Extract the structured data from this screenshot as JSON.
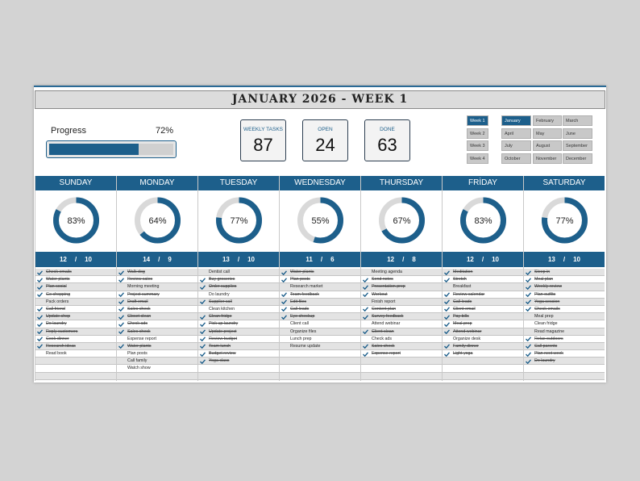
{
  "title": "JANUARY 2026 - WEEK 1",
  "progress": {
    "label": "Progress",
    "value": 72,
    "value_label": "72%"
  },
  "stats": [
    {
      "label": "WEEKLY TASKS",
      "value": 87
    },
    {
      "label": "OPEN",
      "value": 24
    },
    {
      "label": "DONE",
      "value": 63
    }
  ],
  "weeks": [
    {
      "label": "Week 1",
      "selected": true
    },
    {
      "label": "Week 2",
      "selected": false
    },
    {
      "label": "Week 3",
      "selected": false
    },
    {
      "label": "Week 4",
      "selected": false
    }
  ],
  "months": [
    {
      "label": "January",
      "selected": true
    },
    {
      "label": "February",
      "selected": false
    },
    {
      "label": "March",
      "selected": false
    },
    {
      "label": "April",
      "selected": false
    },
    {
      "label": "May",
      "selected": false
    },
    {
      "label": "June",
      "selected": false
    },
    {
      "label": "July",
      "selected": false
    },
    {
      "label": "August",
      "selected": false
    },
    {
      "label": "September",
      "selected": false
    },
    {
      "label": "October",
      "selected": false
    },
    {
      "label": "November",
      "selected": false
    },
    {
      "label": "December",
      "selected": false
    }
  ],
  "count_separator": "/",
  "days": [
    {
      "name": "SUNDAY",
      "percent": 83,
      "percent_label": "83%",
      "total": 12,
      "done": 10,
      "tasks": [
        {
          "text": "Check emails",
          "done": true
        },
        {
          "text": "Water plants",
          "done": true
        },
        {
          "text": "Plan social",
          "done": true
        },
        {
          "text": "Go shopping",
          "done": true
        },
        {
          "text": "Pack orders",
          "done": false
        },
        {
          "text": "Call friend",
          "done": true
        },
        {
          "text": "Update shop",
          "done": true
        },
        {
          "text": "Do laundry",
          "done": true
        },
        {
          "text": "Reply customers",
          "done": true
        },
        {
          "text": "Cook dinner",
          "done": true
        },
        {
          "text": "Research ideas",
          "done": true
        },
        {
          "text": "Read book",
          "done": false
        }
      ]
    },
    {
      "name": "MONDAY",
      "percent": 64,
      "percent_label": "64%",
      "total": 14,
      "done": 9,
      "tasks": [
        {
          "text": "Walk dog",
          "done": true
        },
        {
          "text": "Review sales",
          "done": true
        },
        {
          "text": "Morning meeting",
          "done": false
        },
        {
          "text": "Project summary",
          "done": true
        },
        {
          "text": "Draft email",
          "done": true
        },
        {
          "text": "Sales check",
          "done": true
        },
        {
          "text": "Closet clean",
          "done": true
        },
        {
          "text": "Check ads",
          "done": true
        },
        {
          "text": "Sales check",
          "done": true
        },
        {
          "text": "Expense report",
          "done": false
        },
        {
          "text": "Water plants",
          "done": true
        },
        {
          "text": "Plan posts",
          "done": false
        },
        {
          "text": "Call family",
          "done": false
        },
        {
          "text": "Watch show",
          "done": false
        }
      ]
    },
    {
      "name": "TUESDAY",
      "percent": 77,
      "percent_label": "77%",
      "total": 13,
      "done": 10,
      "tasks": [
        {
          "text": "Dentist call",
          "done": false
        },
        {
          "text": "Buy groceries",
          "done": true
        },
        {
          "text": "Order supplies",
          "done": true
        },
        {
          "text": "Do laundry",
          "done": false
        },
        {
          "text": "Supplier call",
          "done": true
        },
        {
          "text": "Clean kitchen",
          "done": false
        },
        {
          "text": "Clean fridge",
          "done": true
        },
        {
          "text": "Pick up laundry",
          "done": true
        },
        {
          "text": "Update project",
          "done": true
        },
        {
          "text": "Review budget",
          "done": true
        },
        {
          "text": "Team lunch",
          "done": true
        },
        {
          "text": "Budget review",
          "done": true
        },
        {
          "text": "Yoga class",
          "done": true
        }
      ]
    },
    {
      "name": "WEDNESDAY",
      "percent": 55,
      "percent_label": "55%",
      "total": 11,
      "done": 6,
      "tasks": [
        {
          "text": "Water plants",
          "done": true
        },
        {
          "text": "Plan posts",
          "done": true
        },
        {
          "text": "Research market",
          "done": false
        },
        {
          "text": "Team feedback",
          "done": true
        },
        {
          "text": "Edit files",
          "done": true
        },
        {
          "text": "Call leads",
          "done": true
        },
        {
          "text": "Eye checkup",
          "done": true
        },
        {
          "text": "Client call",
          "done": false
        },
        {
          "text": "Organize files",
          "done": false
        },
        {
          "text": "Lunch prep",
          "done": false
        },
        {
          "text": "Resume update",
          "done": false
        }
      ]
    },
    {
      "name": "THURSDAY",
      "percent": 67,
      "percent_label": "67%",
      "total": 12,
      "done": 8,
      "tasks": [
        {
          "text": "Meeting agenda",
          "done": false
        },
        {
          "text": "Send notes",
          "done": true
        },
        {
          "text": "Presentation prep",
          "done": true
        },
        {
          "text": "Workout",
          "done": true
        },
        {
          "text": "Finish report",
          "done": false
        },
        {
          "text": "Content plan",
          "done": true
        },
        {
          "text": "Survey feedback",
          "done": true
        },
        {
          "text": "Attend webinar",
          "done": false
        },
        {
          "text": "Client clean",
          "done": true
        },
        {
          "text": "Check ads",
          "done": false
        },
        {
          "text": "Sales check",
          "done": true
        },
        {
          "text": "Expense report",
          "done": true
        }
      ]
    },
    {
      "name": "FRİDAY",
      "percent": 83,
      "percent_label": "83%",
      "total": 12,
      "done": 10,
      "tasks": [
        {
          "text": "Meditation",
          "done": true
        },
        {
          "text": "Stretch",
          "done": true
        },
        {
          "text": "Breakfast",
          "done": false
        },
        {
          "text": "Review calendar",
          "done": true
        },
        {
          "text": "Call leads",
          "done": true
        },
        {
          "text": "Client email",
          "done": true
        },
        {
          "text": "Pay bills",
          "done": true
        },
        {
          "text": "Meal prep",
          "done": true
        },
        {
          "text": "Attend webinar",
          "done": true
        },
        {
          "text": "Organize desk",
          "done": false
        },
        {
          "text": "Family dinner",
          "done": true
        },
        {
          "text": "Light yoga",
          "done": true
        }
      ]
    },
    {
      "name": "SATURDAY",
      "percent": 77,
      "percent_label": "77%",
      "total": 13,
      "done": 10,
      "tasks": [
        {
          "text": "Sleep in",
          "done": true
        },
        {
          "text": "Meal plan",
          "done": true
        },
        {
          "text": "Weekly review",
          "done": true
        },
        {
          "text": "Plan outfits",
          "done": true
        },
        {
          "text": "Yoga session",
          "done": true
        },
        {
          "text": "Check emails",
          "done": true
        },
        {
          "text": "Meal prep",
          "done": false
        },
        {
          "text": "Clean fridge",
          "done": false
        },
        {
          "text": "Read magazine",
          "done": false
        },
        {
          "text": "Relax outdoors",
          "done": true
        },
        {
          "text": "Call parents",
          "done": true
        },
        {
          "text": "Plan next week",
          "done": true
        },
        {
          "text": "Do laundry",
          "done": true
        }
      ]
    }
  ]
}
